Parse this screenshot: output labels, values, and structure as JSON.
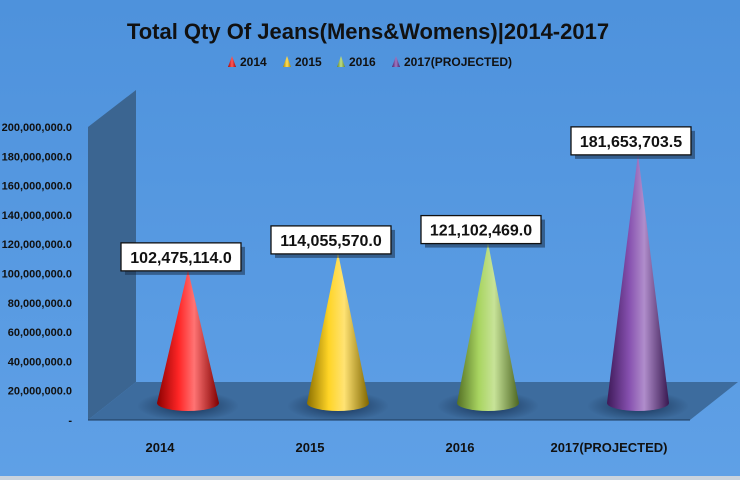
{
  "chart_data": {
    "type": "bar",
    "title": "Total Qty Of Jeans(Mens&Womens)|2014-2017",
    "categories": [
      "2014",
      "2015",
      "2016",
      "2017(PROJECTED)"
    ],
    "values": [
      102475114.0,
      114055570.0,
      121102469.0,
      181653703.5
    ],
    "data_labels": [
      "102,475,114.0",
      "114,055,570.0",
      "121,102,469.0",
      "181,653,703.5"
    ],
    "ylim": [
      0,
      200000000
    ],
    "y_ticks": [
      "-",
      "20,000,000.0",
      "40,000,000.0",
      "60,000,000.0",
      "80,000,000.0",
      "100,000,000.0",
      "120,000,000.0",
      "140,000,000.0",
      "160,000,000.0",
      "180,000,000.0",
      "200,000,000.0"
    ],
    "legend": {
      "position": "top",
      "entries": [
        "2014",
        "2015",
        "2016",
        "2017(PROJECTED)"
      ]
    },
    "colors": [
      "#ff0000",
      "#ffcc00",
      "#99cc44",
      "#7030a0"
    ],
    "background": "#5b9bd5",
    "mark_shape": "cone",
    "grid": false
  }
}
